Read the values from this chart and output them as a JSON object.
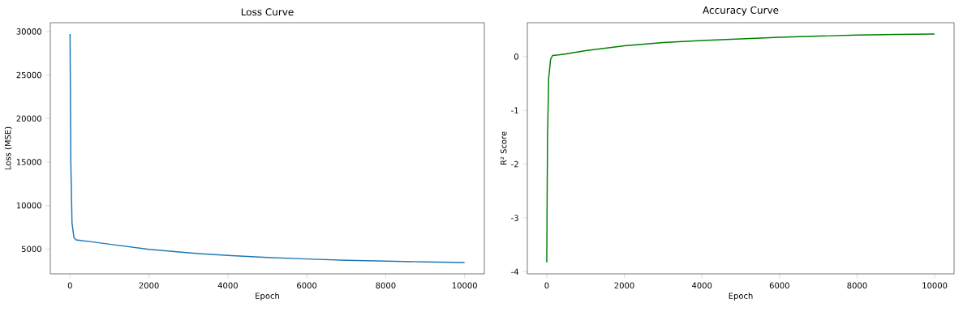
{
  "chart_data": [
    {
      "type": "line",
      "title": "Loss Curve",
      "xlabel": "Epoch",
      "ylabel": "Loss (MSE)",
      "x": [
        0,
        20,
        50,
        100,
        150,
        300,
        500,
        1000,
        2000,
        3000,
        4000,
        5000,
        6000,
        7000,
        8000,
        9000,
        9999
      ],
      "series": [
        {
          "color": "#1f77b4",
          "values": [
            29700,
            15000,
            8000,
            6300,
            6050,
            5950,
            5850,
            5550,
            4950,
            4550,
            4250,
            4030,
            3850,
            3700,
            3600,
            3520,
            3450
          ]
        }
      ],
      "xlim": [
        -500,
        10500
      ],
      "ylim": [
        2137,
        31013
      ],
      "xticks": [
        0,
        2000,
        4000,
        6000,
        8000,
        10000
      ],
      "yticks": [
        5000,
        10000,
        15000,
        20000,
        25000,
        30000
      ]
    },
    {
      "type": "line",
      "title": "Accuracy Curve",
      "xlabel": "Epoch",
      "ylabel": "R² Score",
      "x": [
        0,
        20,
        50,
        100,
        150,
        300,
        500,
        1000,
        2000,
        3000,
        4000,
        5000,
        6000,
        7000,
        8000,
        9000,
        9999
      ],
      "series": [
        {
          "color": "#008000",
          "values": [
            -3.83,
            -1.5,
            -0.4,
            -0.05,
            0.02,
            0.03,
            0.05,
            0.11,
            0.2,
            0.26,
            0.3,
            0.33,
            0.36,
            0.38,
            0.4,
            0.41,
            0.42
          ]
        }
      ],
      "xlim": [
        -500,
        10500
      ],
      "ylim": [
        -4.04,
        0.63
      ],
      "xticks": [
        0,
        2000,
        4000,
        6000,
        8000,
        10000
      ],
      "yticks": [
        -4,
        -3,
        -2,
        -1,
        0
      ]
    }
  ]
}
